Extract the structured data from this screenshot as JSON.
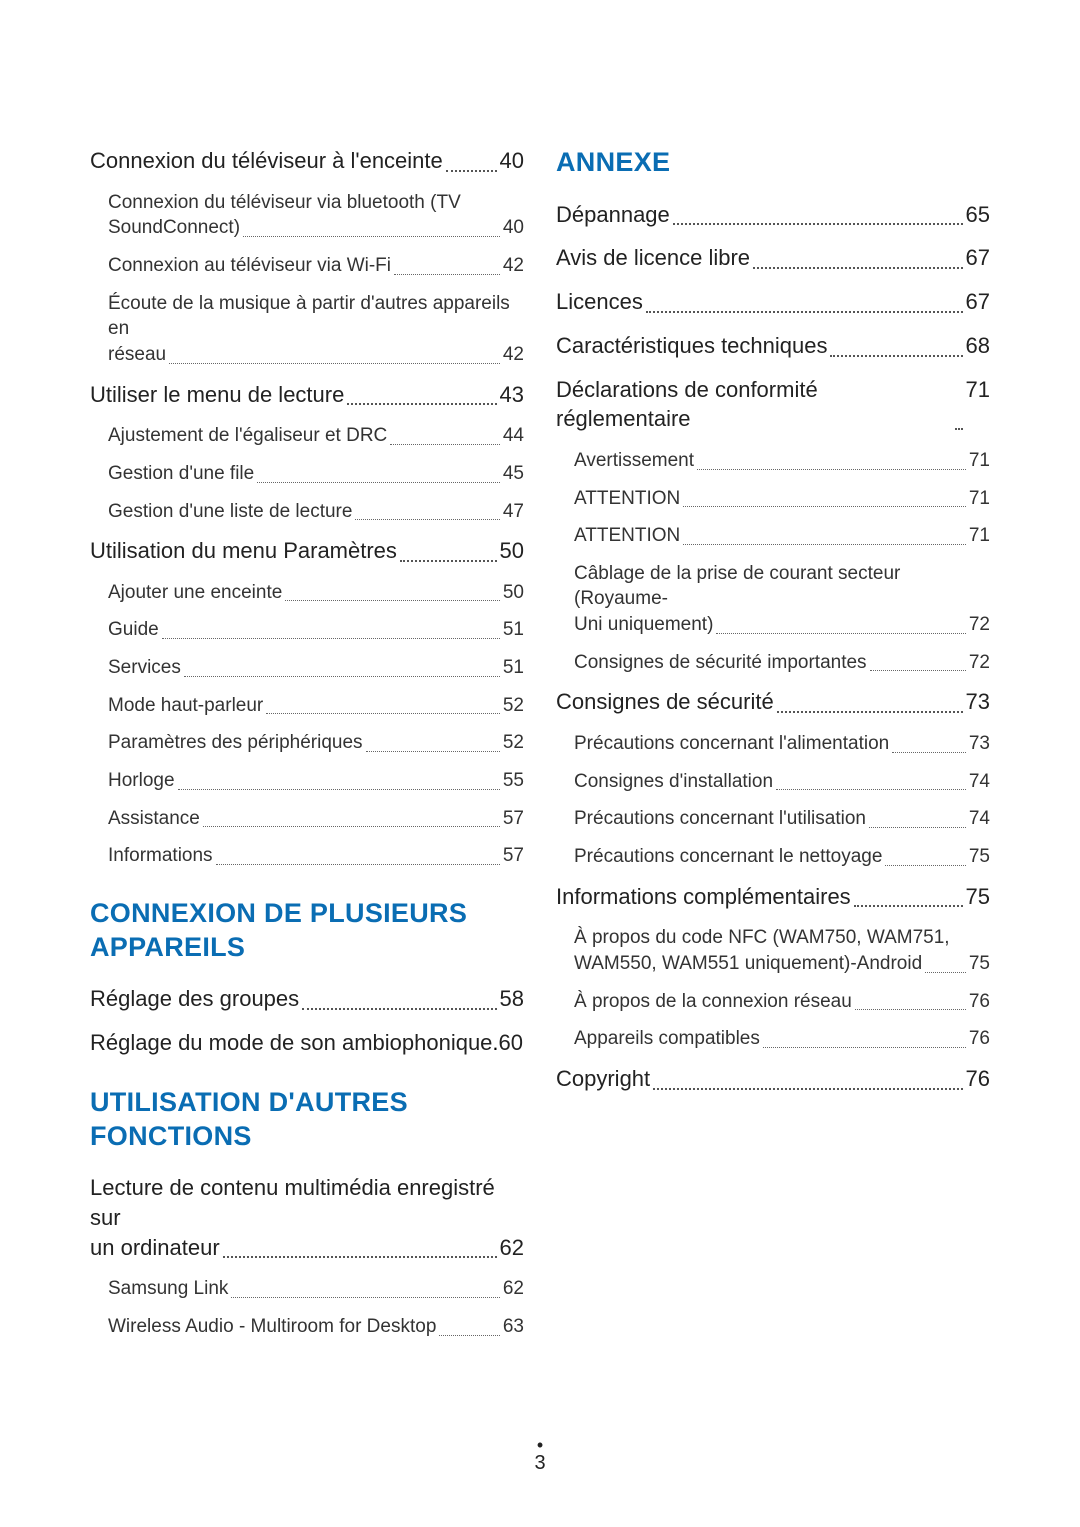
{
  "page_number": "3",
  "left_column": {
    "pre_entries": [
      {
        "level": 1,
        "title": "Connexion du téléviseur à l'enceinte",
        "page": "40"
      },
      {
        "level": 2,
        "title_lines": [
          "Connexion du téléviseur via bluetooth (TV",
          "SoundConnect)"
        ],
        "page": "40"
      },
      {
        "level": 2,
        "title": "Connexion au téléviseur via Wi-Fi",
        "page": "42"
      },
      {
        "level": 2,
        "title_lines": [
          "Écoute de la musique à partir d'autres appareils en",
          "réseau"
        ],
        "page": "42"
      },
      {
        "level": 1,
        "title": "Utiliser le menu de lecture",
        "page": "43"
      },
      {
        "level": 2,
        "title": "Ajustement de l'égaliseur et DRC",
        "page": "44"
      },
      {
        "level": 2,
        "title": "Gestion d'une file",
        "page": "45"
      },
      {
        "level": 2,
        "title": "Gestion d'une liste de lecture",
        "page": "47"
      },
      {
        "level": 1,
        "title": "Utilisation du menu Paramètres",
        "page": "50"
      },
      {
        "level": 2,
        "title": "Ajouter une enceinte",
        "page": "50"
      },
      {
        "level": 2,
        "title": "Guide",
        "page": "51"
      },
      {
        "level": 2,
        "title": "Services",
        "page": "51"
      },
      {
        "level": 2,
        "title": "Mode haut-parleur",
        "page": "52"
      },
      {
        "level": 2,
        "title": "Paramètres des périphériques",
        "page": "52"
      },
      {
        "level": 2,
        "title": "Horloge",
        "page": "55"
      },
      {
        "level": 2,
        "title": "Assistance",
        "page": "57"
      },
      {
        "level": 2,
        "title": "Informations",
        "page": "57"
      }
    ],
    "sections": [
      {
        "heading": "CONNEXION DE PLUSIEURS APPAREILS",
        "entries": [
          {
            "level": 1,
            "title": "Réglage des groupes",
            "page": "58"
          },
          {
            "level": 1,
            "title": "Réglage du mode de son ambiophonique",
            "page": "60",
            "nodots": true
          }
        ]
      },
      {
        "heading": "UTILISATION D'AUTRES FONCTIONS",
        "entries": [
          {
            "level": 1,
            "title_lines": [
              "Lecture de contenu multimédia enregistré sur",
              "un ordinateur"
            ],
            "page": "62"
          },
          {
            "level": 2,
            "title": "Samsung Link",
            "page": "62"
          },
          {
            "level": 2,
            "title": "Wireless Audio - Multiroom for Desktop",
            "page": "63"
          }
        ]
      }
    ]
  },
  "right_column": {
    "sections": [
      {
        "heading": "ANNEXE",
        "entries": [
          {
            "level": 1,
            "title": "Dépannage",
            "page": "65"
          },
          {
            "level": 1,
            "title": "Avis de licence libre",
            "page": "67"
          },
          {
            "level": 1,
            "title": "Licences",
            "page": "67"
          },
          {
            "level": 1,
            "title": "Caractéristiques techniques",
            "page": "68"
          },
          {
            "level": 1,
            "title": "Déclarations de conformité réglementaire",
            "page": "71",
            "tight": true
          },
          {
            "level": 2,
            "title": "Avertissement",
            "page": "71"
          },
          {
            "level": 2,
            "title": "ATTENTION",
            "page": "71"
          },
          {
            "level": 2,
            "title": "ATTENTION",
            "page": "71"
          },
          {
            "level": 2,
            "title_lines": [
              "Câblage de la prise de courant secteur (Royaume-",
              "Uni uniquement)"
            ],
            "page": "72"
          },
          {
            "level": 2,
            "title": "Consignes de sécurité importantes",
            "page": "72"
          },
          {
            "level": 1,
            "title": "Consignes de sécurité",
            "page": "73"
          },
          {
            "level": 2,
            "title": "Précautions concernant l'alimentation",
            "page": "73"
          },
          {
            "level": 2,
            "title": "Consignes d'installation",
            "page": "74"
          },
          {
            "level": 2,
            "title": "Précautions concernant l'utilisation",
            "page": "74"
          },
          {
            "level": 2,
            "title": "Précautions concernant le nettoyage",
            "page": "75"
          },
          {
            "level": 1,
            "title": "Informations complémentaires",
            "page": "75"
          },
          {
            "level": 2,
            "title_lines": [
              "À propos du code NFC (WAM750, WAM751,",
              "WAM550, WAM551 uniquement)-Android"
            ],
            "page": "75"
          },
          {
            "level": 2,
            "title": "À propos de la connexion réseau",
            "page": "76"
          },
          {
            "level": 2,
            "title": "Appareils compatibles",
            "page": "76"
          },
          {
            "level": 1,
            "title": "Copyright",
            "page": "76"
          }
        ]
      }
    ]
  }
}
